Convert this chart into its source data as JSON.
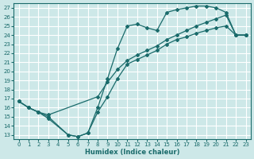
{
  "xlabel": "Humidex (Indice chaleur)",
  "bg_color": "#cde8e8",
  "grid_color": "#ffffff",
  "line_color": "#1a6b6b",
  "xlim": [
    -0.5,
    23.5
  ],
  "ylim": [
    12.5,
    27.5
  ],
  "xticks": [
    0,
    1,
    2,
    3,
    4,
    5,
    6,
    7,
    8,
    9,
    10,
    11,
    12,
    13,
    14,
    15,
    16,
    17,
    18,
    19,
    20,
    21,
    22,
    23
  ],
  "yticks": [
    13,
    14,
    15,
    16,
    17,
    18,
    19,
    20,
    21,
    22,
    23,
    24,
    25,
    26,
    27
  ],
  "line_top_x": [
    0,
    1,
    2,
    3,
    5,
    6,
    7,
    8,
    9,
    10,
    11,
    12,
    13,
    14,
    15,
    16,
    17,
    18,
    19,
    20,
    21,
    22,
    23
  ],
  "line_top_y": [
    16.7,
    16.0,
    15.5,
    14.8,
    13.0,
    12.8,
    13.2,
    16.0,
    19.2,
    22.5,
    25.0,
    25.2,
    24.8,
    24.5,
    26.5,
    26.8,
    27.0,
    27.2,
    27.2,
    27.0,
    26.5,
    24.0,
    24.0
  ],
  "line_mid_x": [
    0,
    1,
    2,
    3,
    8,
    9,
    10,
    11,
    12,
    13,
    14,
    15,
    16,
    17,
    18,
    19,
    20,
    21,
    22,
    23
  ],
  "line_mid_y": [
    16.7,
    16.0,
    15.5,
    15.2,
    17.2,
    18.8,
    20.2,
    21.2,
    21.8,
    22.3,
    22.8,
    23.5,
    24.0,
    24.5,
    25.0,
    25.4,
    25.8,
    26.2,
    24.0,
    24.0
  ],
  "line_bot_x": [
    0,
    1,
    2,
    3,
    5,
    6,
    7,
    8,
    9,
    10,
    11,
    12,
    13,
    14,
    15,
    16,
    17,
    18,
    19,
    20,
    21,
    22,
    23
  ],
  "line_bot_y": [
    16.7,
    16.0,
    15.5,
    15.0,
    13.0,
    12.8,
    13.2,
    15.5,
    17.2,
    19.2,
    20.8,
    21.3,
    21.8,
    22.3,
    23.0,
    23.5,
    23.8,
    24.2,
    24.5,
    24.8,
    25.0,
    24.0,
    24.0
  ]
}
